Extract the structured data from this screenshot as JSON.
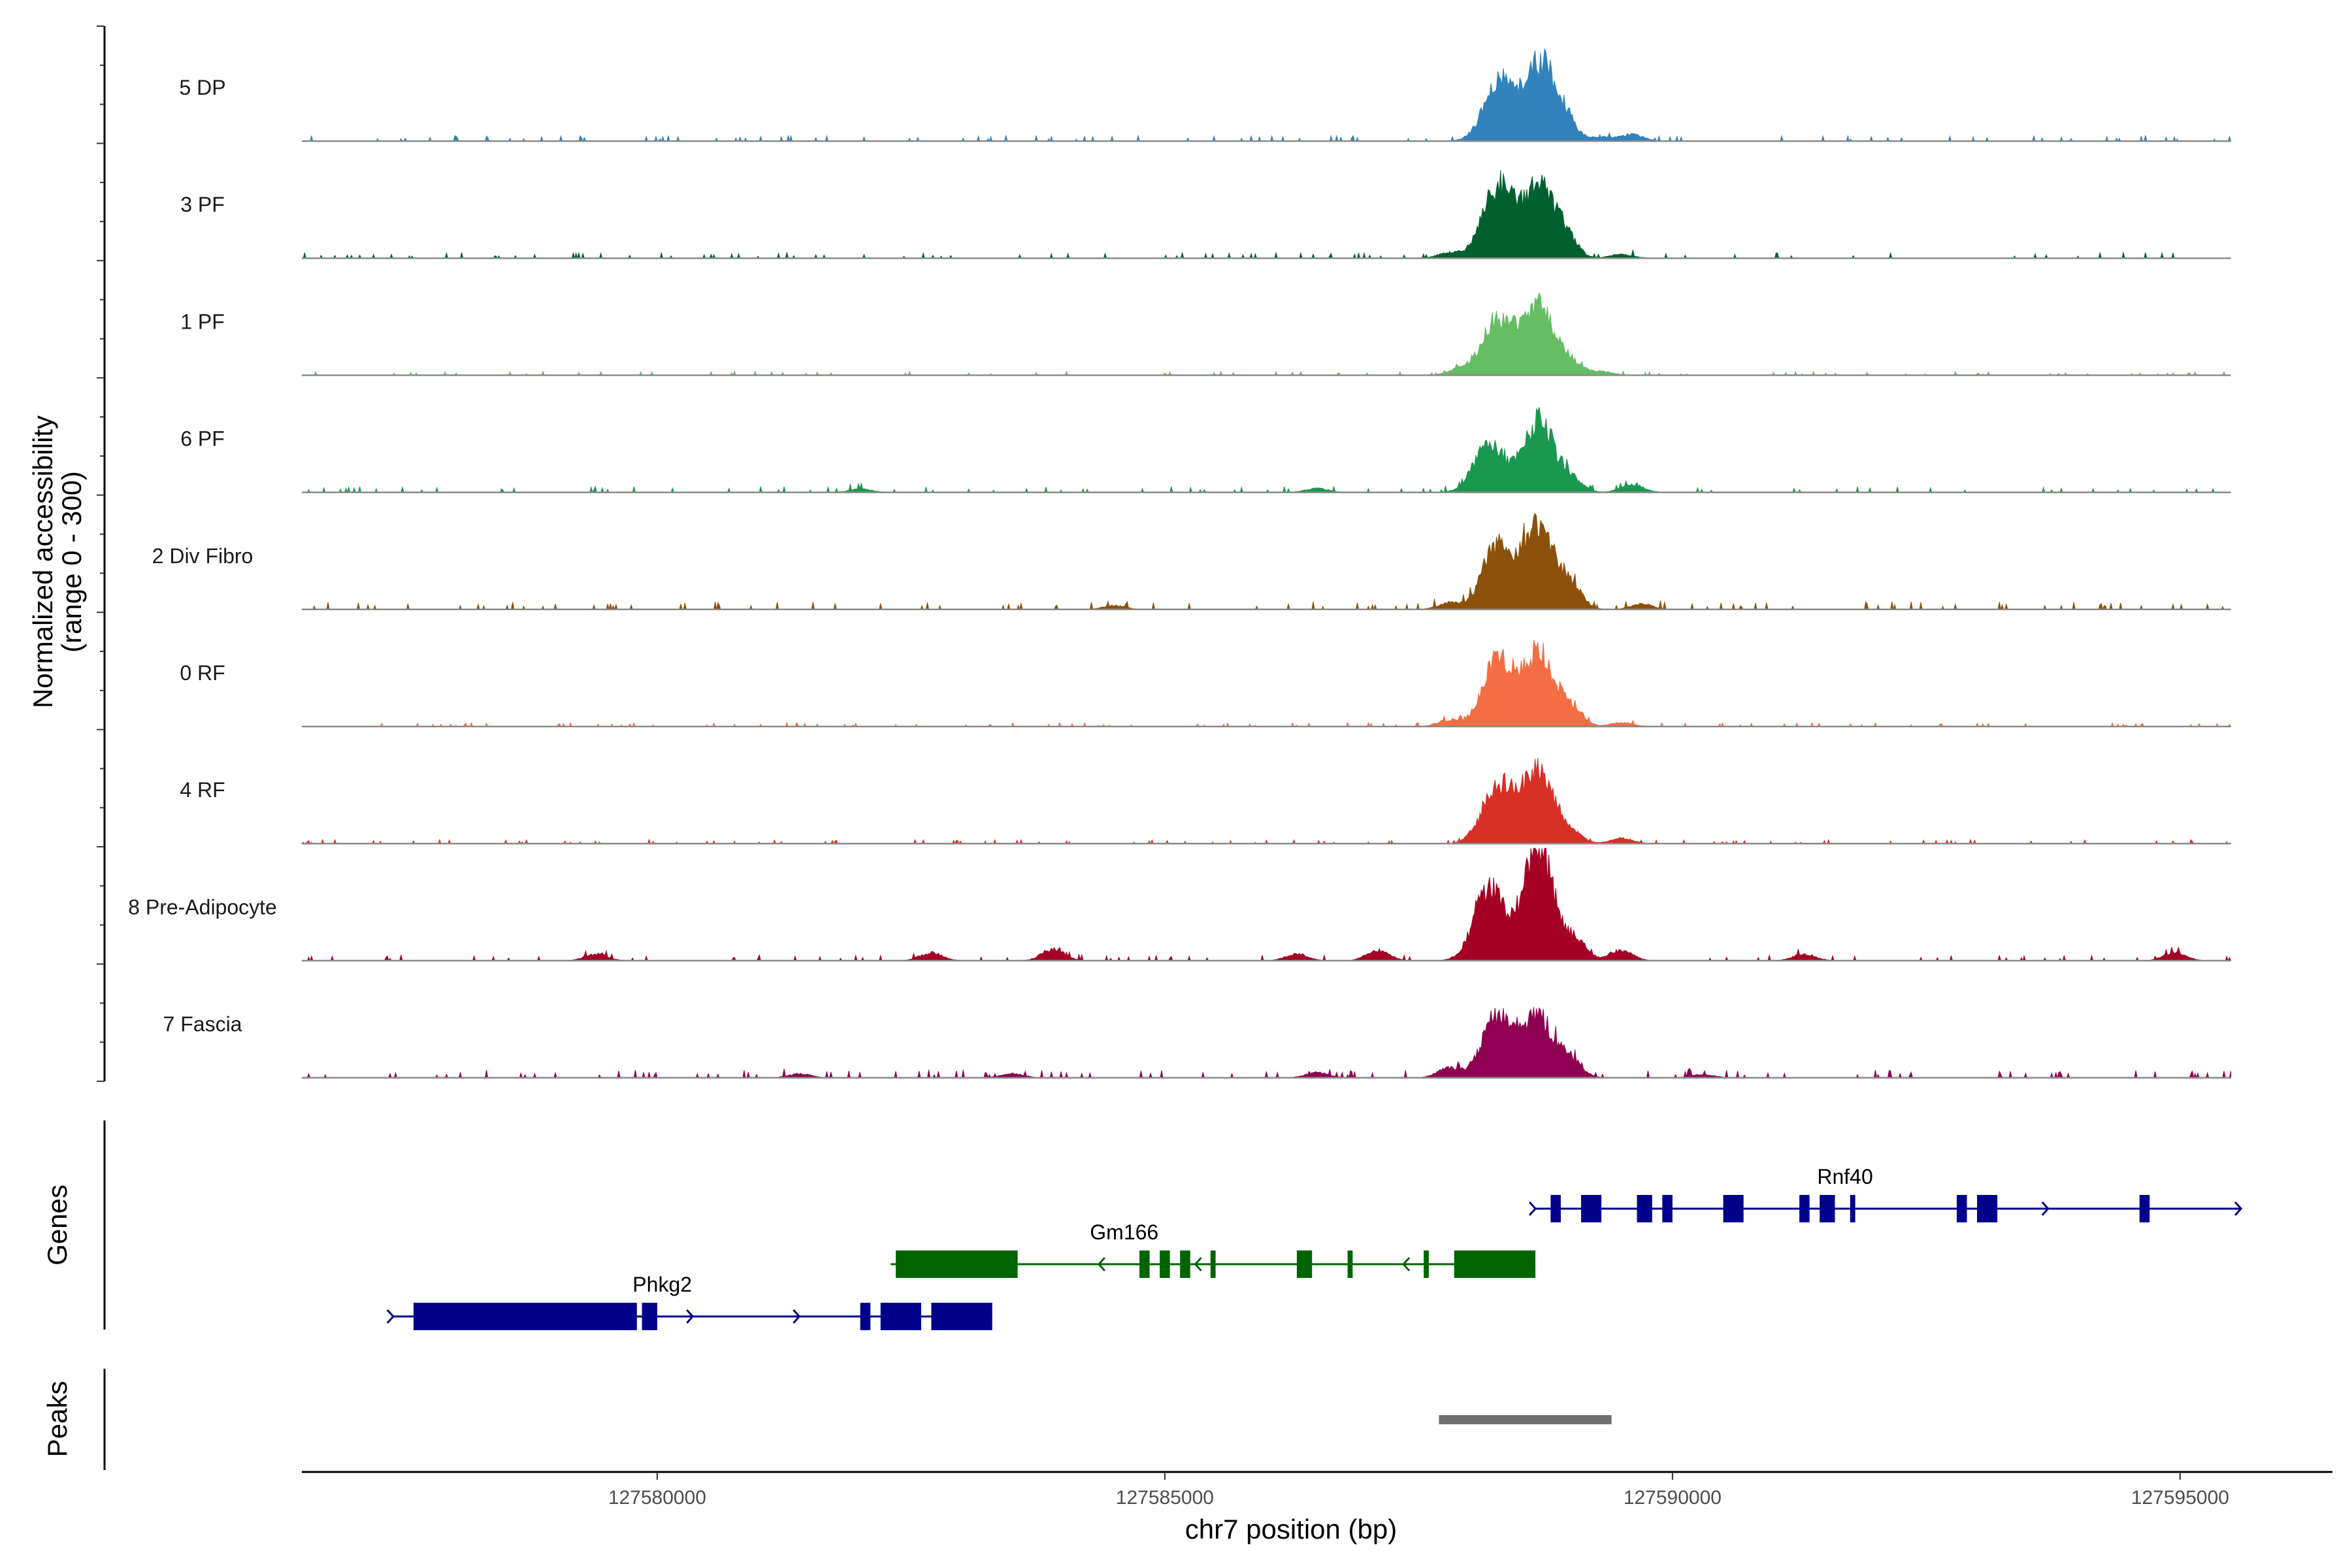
{
  "chart_data": {
    "type": "area",
    "title": "",
    "region": {
      "chrom": "chr7",
      "start": 127576500,
      "end": 127596500
    },
    "xlabel": "chr7 position (bp)",
    "xticks": [
      127580000,
      127585000,
      127590000,
      127595000
    ],
    "ylabel": "Normalized accessibility",
    "ylabel_range": "(range 0 - 300)",
    "ylim": [
      0,
      300
    ],
    "tracks": [
      {
        "name": "5 DP",
        "color": "#3182bd",
        "peaks": [
          [
            127588300,
            95
          ],
          [
            127588700,
            120
          ],
          [
            127588950,
            25
          ],
          [
            127589300,
            6
          ],
          [
            127589600,
            10
          ]
        ],
        "noise": 3,
        "seed": 5
      },
      {
        "name": "3 PF",
        "color": "#00602f",
        "peaks": [
          [
            127588280,
            110
          ],
          [
            127588680,
            110
          ],
          [
            127588950,
            30
          ],
          [
            127587800,
            8
          ],
          [
            127589500,
            6
          ]
        ],
        "noise": 3,
        "seed": 3
      },
      {
        "name": "1 PF",
        "color": "#66bd63",
        "peaks": [
          [
            127588280,
            85
          ],
          [
            127588680,
            105
          ],
          [
            127589000,
            18
          ],
          [
            127587900,
            10
          ],
          [
            127589300,
            6
          ]
        ],
        "noise": 2,
        "seed": 1
      },
      {
        "name": "6 PF",
        "color": "#1a9850",
        "peaks": [
          [
            127588200,
            75
          ],
          [
            127588680,
            105
          ],
          [
            127589000,
            20
          ],
          [
            127589600,
            12
          ],
          [
            127586500,
            6
          ],
          [
            127582000,
            5
          ]
        ],
        "noise": 3,
        "seed": 6
      },
      {
        "name": "2 Div Fibro",
        "color": "#8c510a",
        "peaks": [
          [
            127588280,
            100
          ],
          [
            127588680,
            125
          ],
          [
            127589000,
            35
          ],
          [
            127587800,
            10
          ],
          [
            127589700,
            8
          ],
          [
            127584500,
            6
          ]
        ],
        "noise": 4,
        "seed": 2
      },
      {
        "name": "0 RF",
        "color": "#f46d43",
        "peaks": [
          [
            127588280,
            100
          ],
          [
            127588680,
            110
          ],
          [
            127589000,
            28
          ],
          [
            127587800,
            10
          ],
          [
            127589500,
            6
          ]
        ],
        "noise": 2,
        "seed": 0
      },
      {
        "name": "4 RF",
        "color": "#d73027",
        "peaks": [
          [
            127588280,
            90
          ],
          [
            127588680,
            115
          ],
          [
            127589000,
            15
          ],
          [
            127589500,
            8
          ]
        ],
        "noise": 2,
        "seed": 4
      },
      {
        "name": "8 Pre-Adipocyte",
        "color": "#a50026",
        "peaks": [
          [
            127588200,
            110
          ],
          [
            127588680,
            170
          ],
          [
            127589050,
            30
          ],
          [
            127589500,
            15
          ],
          [
            127583900,
            18
          ],
          [
            127582700,
            12
          ],
          [
            127587100,
            16
          ],
          [
            127586300,
            10
          ],
          [
            127594950,
            12
          ],
          [
            127579400,
            10
          ],
          [
            127591300,
            10
          ]
        ],
        "noise": 3,
        "seed": 8
      },
      {
        "name": "7 Fascia",
        "color": "#8e0152",
        "peaks": [
          [
            127588280,
            95
          ],
          [
            127588680,
            90
          ],
          [
            127589000,
            25
          ],
          [
            127587800,
            15
          ],
          [
            127586500,
            8
          ],
          [
            127581400,
            6
          ],
          [
            127583500,
            6
          ],
          [
            127590300,
            5
          ]
        ],
        "noise": 4,
        "seed": 7
      }
    ],
    "genes_title": "Genes",
    "genes": [
      {
        "name": "Rnf40",
        "strand": "+",
        "color": "#00008b",
        "start": 127588650,
        "end": 127595600,
        "row": 0,
        "label_pos": 127591700,
        "exons": [
          [
            127588800,
            127588900
          ],
          [
            127589100,
            127589300
          ],
          [
            127589650,
            127589800
          ],
          [
            127589900,
            127590000
          ],
          [
            127590500,
            127590700
          ],
          [
            127591250,
            127591350
          ],
          [
            127591450,
            127591600
          ],
          [
            127591750,
            127591800
          ],
          [
            127592800,
            127592900
          ],
          [
            127593000,
            127593200
          ],
          [
            127594600,
            127594700
          ]
        ],
        "arrows": [
          127588650,
          127593700,
          127595600
        ]
      },
      {
        "name": "Gm166",
        "strand": "-",
        "color": "#006400",
        "start": 127582300,
        "end": 127588650,
        "row": 1,
        "label_pos": 127584600,
        "exons": [
          [
            127582350,
            127583550
          ],
          [
            127584750,
            127584850
          ],
          [
            127584950,
            127585050
          ],
          [
            127585150,
            127585250
          ],
          [
            127585450,
            127585500
          ],
          [
            127586300,
            127586450
          ],
          [
            127586800,
            127586850
          ],
          [
            127587550,
            127587600
          ],
          [
            127587850,
            127588650
          ]
        ],
        "arrows": [
          127584350,
          127585300,
          127587350
        ]
      },
      {
        "name": "Phkg2",
        "strand": "+",
        "color": "#00008b",
        "start": 127577400,
        "end": 127583300,
        "row": 2,
        "label_pos": 127580050,
        "exons": [
          [
            127577600,
            127579800
          ],
          [
            127579850,
            127580000
          ],
          [
            127582000,
            127582100
          ],
          [
            127582200,
            127582600
          ],
          [
            127582700,
            127583300
          ]
        ],
        "arrows": [
          127577400,
          127580350,
          127581400
        ]
      }
    ],
    "peaks_title": "Peaks",
    "peak_regions": [
      {
        "start": 127587700,
        "end": 127589400,
        "color": "#707070"
      }
    ]
  }
}
